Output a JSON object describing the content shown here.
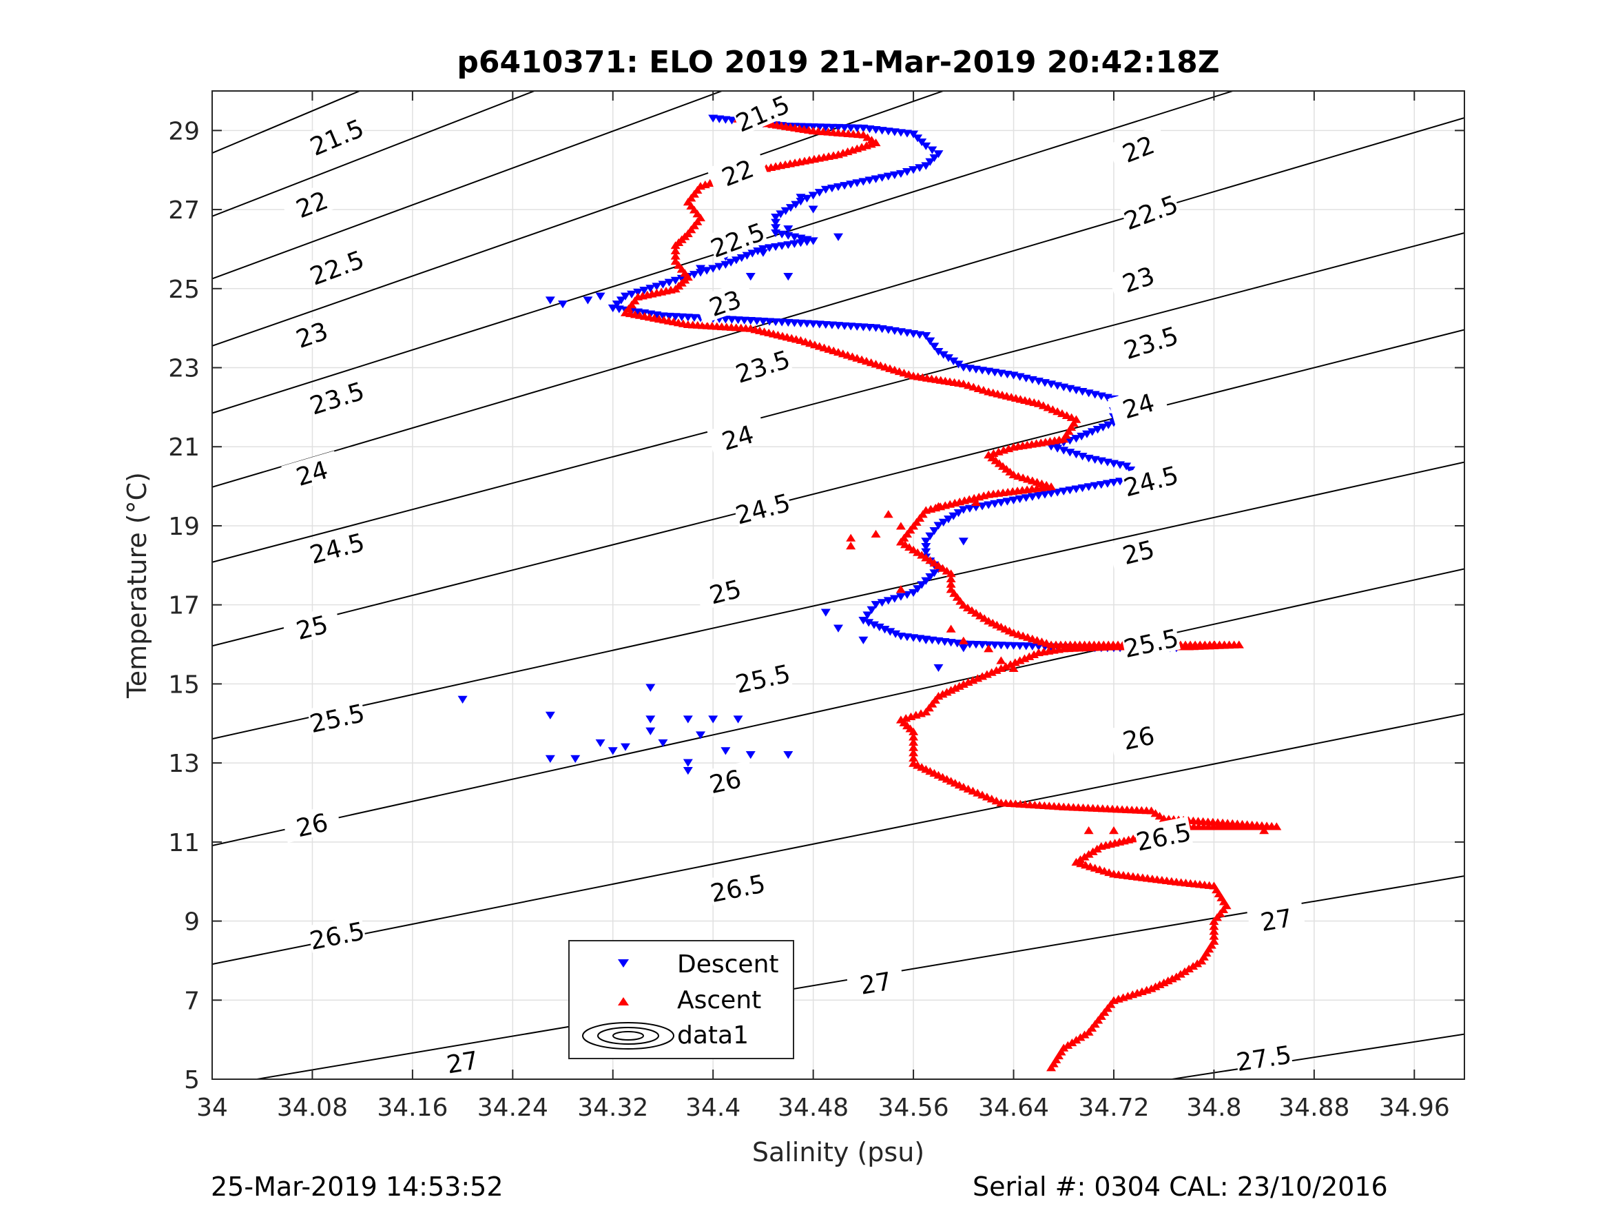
{
  "chart_data": {
    "type": "scatter",
    "title": "p6410371: ELO 2019 21-Mar-2019 20:42:18Z",
    "xlabel": "Salinity (psu)",
    "ylabel": "Temperature (°C)",
    "xlim": [
      34,
      35.0
    ],
    "ylim": [
      5,
      30
    ],
    "xticks": [
      "34",
      "34.08",
      "34.16",
      "34.24",
      "34.32",
      "34.4",
      "34.48",
      "34.56",
      "34.64",
      "34.72",
      "34.8",
      "34.88",
      "34.96"
    ],
    "yticks": [
      "5",
      "7",
      "9",
      "11",
      "13",
      "15",
      "17",
      "19",
      "21",
      "23",
      "25",
      "27",
      "29"
    ],
    "grid": true,
    "legend": {
      "placement": "bottom-center",
      "entries": [
        "Descent",
        "Ascent",
        "data1"
      ]
    },
    "colors": {
      "descent": "#0000ff",
      "ascent": "#ff0000",
      "isopycnal": "#000000"
    },
    "isopycnals": [
      {
        "label": "21.5",
        "T0": 28.43,
        "slope": 13.33,
        "labels": [
          [
            34.1,
            28.8
          ],
          [
            34.44,
            29.4
          ]
        ]
      },
      {
        "label": "22",
        "T0": 26.83,
        "slope": 12.32,
        "labels": [
          [
            34.08,
            27.1
          ],
          [
            34.42,
            27.9
          ],
          [
            34.74,
            28.5
          ]
        ]
      },
      {
        "label": "22.5",
        "T0": 25.25,
        "slope": 11.67,
        "labels": [
          [
            34.1,
            25.5
          ],
          [
            34.42,
            26.2
          ],
          [
            34.75,
            26.9
          ]
        ]
      },
      {
        "label": "23",
        "T0": 23.55,
        "slope": 11.05,
        "labels": [
          [
            34.08,
            23.8
          ],
          [
            34.41,
            24.6
          ],
          [
            34.74,
            25.2
          ]
        ]
      },
      {
        "label": "23.5",
        "T0": 21.85,
        "slope": 10.0,
        "labels": [
          [
            34.1,
            22.2
          ],
          [
            34.44,
            23.0
          ],
          [
            34.75,
            23.6
          ]
        ]
      },
      {
        "label": "24",
        "T0": 19.98,
        "slope": 9.34,
        "labels": [
          [
            34.08,
            20.3
          ],
          [
            34.42,
            21.2
          ],
          [
            34.74,
            22.0
          ]
        ]
      },
      {
        "label": "24.5",
        "T0": 18.08,
        "slope": 8.33,
        "labels": [
          [
            34.1,
            18.4
          ],
          [
            34.44,
            19.4
          ],
          [
            34.75,
            20.1
          ]
        ]
      },
      {
        "label": "25",
        "T0": 15.96,
        "slope": 8.0,
        "labels": [
          [
            34.08,
            16.4
          ],
          [
            34.41,
            17.3
          ],
          [
            34.74,
            18.3
          ]
        ]
      },
      {
        "label": "25.5",
        "T0": 13.61,
        "slope": 7.0,
        "labels": [
          [
            34.1,
            14.1
          ],
          [
            34.44,
            15.1
          ],
          [
            34.75,
            16.0
          ]
        ]
      },
      {
        "label": "26",
        "T0": 10.91,
        "slope": 7.0,
        "labels": [
          [
            34.08,
            11.4
          ],
          [
            34.41,
            12.5
          ],
          [
            34.74,
            13.6
          ]
        ]
      },
      {
        "label": "26.5",
        "T0": 7.91,
        "slope": 6.33,
        "labels": [
          [
            34.1,
            8.6
          ],
          [
            34.42,
            9.8
          ],
          [
            34.76,
            11.1
          ]
        ]
      },
      {
        "label": "27",
        "T0": 4.81,
        "slope": 5.33,
        "labels": [
          [
            34.2,
            5.4
          ],
          [
            34.53,
            7.4
          ],
          [
            34.85,
            9.0
          ]
        ]
      },
      {
        "label": "27.5",
        "T0": 1.26,
        "slope": 4.88,
        "labels": [
          [
            34.84,
            5.5
          ]
        ]
      }
    ],
    "series": [
      {
        "name": "Descent",
        "marker": "triangle-down",
        "path": [
          [
            34.4,
            29.3
          ],
          [
            34.46,
            29.1
          ],
          [
            34.52,
            29.05
          ],
          [
            34.56,
            28.9
          ],
          [
            34.57,
            28.6
          ],
          [
            34.58,
            28.4
          ],
          [
            34.57,
            28.1
          ],
          [
            34.55,
            27.9
          ],
          [
            34.52,
            27.7
          ],
          [
            34.49,
            27.5
          ],
          [
            34.47,
            27.2
          ],
          [
            34.45,
            26.8
          ],
          [
            34.45,
            26.4
          ],
          [
            34.48,
            26.2
          ],
          [
            34.44,
            26.0
          ],
          [
            34.41,
            25.6
          ],
          [
            34.38,
            25.3
          ],
          [
            34.35,
            25.0
          ],
          [
            34.33,
            24.8
          ],
          [
            34.32,
            24.5
          ],
          [
            34.36,
            24.3
          ],
          [
            34.42,
            24.2
          ],
          [
            34.48,
            24.1
          ],
          [
            34.53,
            24.0
          ],
          [
            34.57,
            23.8
          ],
          [
            34.58,
            23.4
          ],
          [
            34.6,
            23.0
          ],
          [
            34.64,
            22.8
          ],
          [
            34.68,
            22.5
          ],
          [
            34.72,
            22.2
          ],
          [
            34.72,
            21.6
          ],
          [
            34.69,
            21.2
          ],
          [
            34.67,
            21.0
          ],
          [
            34.7,
            20.7
          ],
          [
            34.73,
            20.5
          ],
          [
            34.74,
            20.2
          ],
          [
            34.65,
            19.7
          ],
          [
            34.6,
            19.4
          ],
          [
            34.58,
            19.0
          ],
          [
            34.57,
            18.6
          ],
          [
            34.57,
            18.2
          ],
          [
            34.58,
            17.9
          ],
          [
            34.57,
            17.6
          ],
          [
            34.56,
            17.3
          ],
          [
            34.53,
            17.0
          ],
          [
            34.52,
            16.6
          ],
          [
            34.55,
            16.2
          ],
          [
            34.6,
            16.0
          ],
          [
            34.65,
            15.95
          ],
          [
            34.7,
            15.9
          ],
          [
            34.75,
            15.9
          ],
          [
            34.77,
            15.9
          ]
        ]
      },
      {
        "name": "Ascent",
        "marker": "triangle-up",
        "path": [
          [
            34.67,
            5.3
          ],
          [
            34.68,
            5.8
          ],
          [
            34.7,
            6.2
          ],
          [
            34.71,
            6.6
          ],
          [
            34.72,
            7.0
          ],
          [
            34.75,
            7.3
          ],
          [
            34.77,
            7.6
          ],
          [
            34.79,
            8.0
          ],
          [
            34.8,
            8.5
          ],
          [
            34.8,
            9.0
          ],
          [
            34.81,
            9.4
          ],
          [
            34.8,
            9.9
          ],
          [
            34.77,
            10.0
          ],
          [
            34.72,
            10.2
          ],
          [
            34.69,
            10.5
          ],
          [
            34.71,
            10.9
          ],
          [
            34.75,
            11.2
          ],
          [
            34.78,
            11.4
          ],
          [
            34.85,
            11.4
          ],
          [
            34.76,
            11.6
          ],
          [
            34.75,
            11.8
          ],
          [
            34.68,
            11.9
          ],
          [
            34.63,
            12.0
          ],
          [
            34.6,
            12.4
          ],
          [
            34.58,
            12.7
          ],
          [
            34.56,
            13.0
          ],
          [
            34.56,
            13.4
          ],
          [
            34.56,
            13.8
          ],
          [
            34.55,
            14.1
          ],
          [
            34.57,
            14.3
          ],
          [
            34.58,
            14.7
          ],
          [
            34.6,
            15.0
          ],
          [
            34.63,
            15.4
          ],
          [
            34.66,
            15.8
          ],
          [
            34.68,
            15.9
          ],
          [
            34.72,
            15.95
          ],
          [
            34.78,
            15.95
          ],
          [
            34.82,
            16.0
          ],
          [
            34.75,
            16.0
          ],
          [
            34.67,
            16.0
          ],
          [
            34.64,
            16.3
          ],
          [
            34.62,
            16.6
          ],
          [
            34.6,
            17.0
          ],
          [
            34.59,
            17.4
          ],
          [
            34.59,
            17.8
          ],
          [
            34.57,
            18.2
          ],
          [
            34.55,
            18.6
          ],
          [
            34.56,
            19.0
          ],
          [
            34.57,
            19.4
          ],
          [
            34.62,
            19.8
          ],
          [
            34.67,
            20.0
          ],
          [
            34.64,
            20.3
          ],
          [
            34.62,
            20.8
          ],
          [
            34.64,
            21.0
          ],
          [
            34.68,
            21.2
          ],
          [
            34.69,
            21.7
          ],
          [
            34.66,
            22.1
          ],
          [
            34.62,
            22.4
          ],
          [
            34.6,
            22.6
          ],
          [
            34.56,
            22.8
          ],
          [
            34.53,
            23.1
          ],
          [
            34.5,
            23.4
          ],
          [
            34.47,
            23.7
          ],
          [
            34.43,
            24.0
          ],
          [
            34.38,
            24.1
          ],
          [
            34.33,
            24.4
          ],
          [
            34.34,
            24.8
          ],
          [
            34.37,
            25.0
          ],
          [
            34.38,
            25.3
          ],
          [
            34.37,
            25.7
          ],
          [
            34.37,
            26.1
          ],
          [
            34.38,
            26.4
          ],
          [
            34.39,
            26.8
          ],
          [
            34.38,
            27.2
          ],
          [
            34.39,
            27.6
          ],
          [
            34.42,
            27.9
          ],
          [
            34.45,
            28.1
          ],
          [
            34.5,
            28.4
          ],
          [
            34.53,
            28.7
          ],
          [
            34.52,
            28.9
          ],
          [
            34.48,
            29.0
          ],
          [
            34.44,
            29.2
          ],
          [
            34.42,
            29.3
          ]
        ]
      }
    ],
    "descent_outliers": [
      [
        34.2,
        14.6
      ],
      [
        34.27,
        14.2
      ],
      [
        34.27,
        13.1
      ],
      [
        34.29,
        13.1
      ],
      [
        34.31,
        13.5
      ],
      [
        34.32,
        13.3
      ],
      [
        34.33,
        13.4
      ],
      [
        34.35,
        14.9
      ],
      [
        34.35,
        14.1
      ],
      [
        34.35,
        13.8
      ],
      [
        34.36,
        13.5
      ],
      [
        34.38,
        14.1
      ],
      [
        34.38,
        13.0
      ],
      [
        34.38,
        12.8
      ],
      [
        34.39,
        13.7
      ],
      [
        34.4,
        14.1
      ],
      [
        34.41,
        13.3
      ],
      [
        34.42,
        14.1
      ],
      [
        34.43,
        13.2
      ],
      [
        34.46,
        13.2
      ],
      [
        34.27,
        24.7
      ],
      [
        34.28,
        24.6
      ],
      [
        34.3,
        24.7
      ],
      [
        34.31,
        24.8
      ],
      [
        34.39,
        25.5
      ],
      [
        34.41,
        25.8
      ],
      [
        34.43,
        25.3
      ],
      [
        34.44,
        25.9
      ],
      [
        34.46,
        26.5
      ],
      [
        34.46,
        25.3
      ],
      [
        34.47,
        27.3
      ],
      [
        34.48,
        27.0
      ],
      [
        34.5,
        26.3
      ],
      [
        34.49,
        16.8
      ],
      [
        34.5,
        16.4
      ],
      [
        34.52,
        16.1
      ],
      [
        34.57,
        16.1
      ],
      [
        34.58,
        15.4
      ],
      [
        34.6,
        18.6
      ],
      [
        34.6,
        15.9
      ]
    ],
    "ascent_outliers": [
      [
        34.51,
        18.7
      ],
      [
        34.51,
        18.5
      ],
      [
        34.53,
        18.8
      ],
      [
        34.54,
        19.3
      ],
      [
        34.55,
        17.4
      ],
      [
        34.55,
        19.0
      ],
      [
        34.58,
        19.5
      ],
      [
        34.59,
        16.4
      ],
      [
        34.6,
        16.1
      ],
      [
        34.61,
        19.6
      ],
      [
        34.62,
        15.9
      ],
      [
        34.63,
        15.6
      ],
      [
        34.64,
        15.4
      ],
      [
        34.7,
        11.3
      ],
      [
        34.72,
        11.3
      ],
      [
        34.75,
        11.3
      ],
      [
        34.84,
        11.3
      ],
      [
        34.82,
        16.0
      ],
      [
        34.8,
        16.0
      ]
    ]
  },
  "footer": {
    "left": "25-Mar-2019 14:53:52",
    "right": "Serial #: 0304  CAL: 23/10/2016"
  }
}
